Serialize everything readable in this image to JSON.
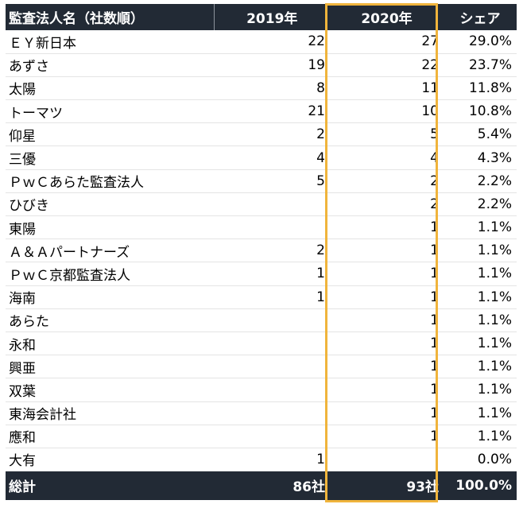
{
  "chart_data": {
    "type": "table",
    "columns": [
      "監査法人名（社数順）",
      "2019年",
      "2020年",
      "シェア"
    ],
    "highlighted_column": "2020年",
    "highlight_color": "#f0b43c",
    "header_color": "#222a35",
    "rows": [
      {
        "name": "ＥＹ新日本",
        "y2019": "22",
        "y2020": "27",
        "share": "29.0%"
      },
      {
        "name": "あずさ",
        "y2019": "19",
        "y2020": "22",
        "share": "23.7%"
      },
      {
        "name": "太陽",
        "y2019": "8",
        "y2020": "11",
        "share": "11.8%"
      },
      {
        "name": "トーマツ",
        "y2019": "21",
        "y2020": "10",
        "share": "10.8%"
      },
      {
        "name": "仰星",
        "y2019": "2",
        "y2020": "5",
        "share": "5.4%"
      },
      {
        "name": "三優",
        "y2019": "4",
        "y2020": "4",
        "share": "4.3%"
      },
      {
        "name": "ＰｗＣあらた監査法人",
        "y2019": "5",
        "y2020": "2",
        "share": "2.2%"
      },
      {
        "name": "ひびき",
        "y2019": "",
        "y2020": "2",
        "share": "2.2%"
      },
      {
        "name": "東陽",
        "y2019": "",
        "y2020": "1",
        "share": "1.1%"
      },
      {
        "name": "Ａ＆Ａパートナーズ",
        "y2019": "2",
        "y2020": "1",
        "share": "1.1%"
      },
      {
        "name": "ＰｗＣ京都監査法人",
        "y2019": "1",
        "y2020": "1",
        "share": "1.1%"
      },
      {
        "name": "海南",
        "y2019": "1",
        "y2020": "1",
        "share": "1.1%"
      },
      {
        "name": "あらた",
        "y2019": "",
        "y2020": "1",
        "share": "1.1%"
      },
      {
        "name": "永和",
        "y2019": "",
        "y2020": "1",
        "share": "1.1%"
      },
      {
        "name": "興亜",
        "y2019": "",
        "y2020": "1",
        "share": "1.1%"
      },
      {
        "name": "双葉",
        "y2019": "",
        "y2020": "1",
        "share": "1.1%"
      },
      {
        "name": "東海会計社",
        "y2019": "",
        "y2020": "1",
        "share": "1.1%"
      },
      {
        "name": "應和",
        "y2019": "",
        "y2020": "1",
        "share": "1.1%"
      },
      {
        "name": "大有",
        "y2019": "1",
        "y2020": "",
        "share": "0.0%"
      }
    ],
    "total": {
      "name": "総計",
      "y2019": "86社",
      "y2020": "93社",
      "share": "100.0%"
    }
  }
}
